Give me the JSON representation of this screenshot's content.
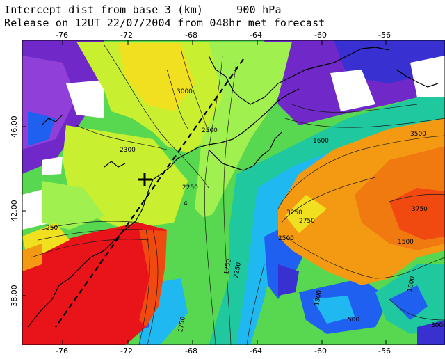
{
  "title": {
    "line1_left": "Intercept dist from base 3 (km)",
    "line1_right": "900 hPa",
    "line2": "Release on 12UT 22/07/2004 from 048hr met forecast"
  },
  "axes": {
    "x_labels": [
      "-76",
      "-72",
      "-68",
      "-64",
      "-60",
      "-56"
    ],
    "y_labels": [
      "46.00",
      "42.00",
      "38.00"
    ]
  },
  "release_marker": {
    "symbol": "+",
    "lon": -70.9,
    "lat": 43.2
  },
  "contour_labels": [
    "3000",
    "2500",
    "2300",
    "2250",
    "250",
    "4",
    "1600",
    "3500",
    "3250",
    "2750",
    "3750",
    "2500",
    "1750",
    "2250",
    "1500",
    "1600",
    "500",
    "1750",
    "1300",
    "3000"
  ],
  "colors": {
    "red": "#e8141a",
    "orange_red": "#f04a10",
    "orange": "#f49a12",
    "dark_orange": "#f07a10",
    "yellow": "#f0e020",
    "yellow_green": "#c8f030",
    "light_green": "#a0f050",
    "green": "#58d850",
    "teal": "#20c8a0",
    "cyan": "#20b8f0",
    "blue": "#2060f0",
    "dark_blue": "#3830d0",
    "purple": "#7028c8",
    "violet": "#9040d8"
  }
}
